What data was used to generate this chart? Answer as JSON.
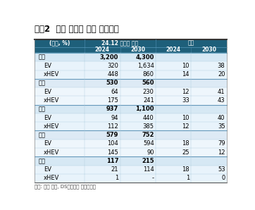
{
  "title": "그림2  기아 중장기 판매 가이던스",
  "footnote": "자료: 회사 자료, DS투자증권 리서치센터",
  "header_row1_labels": [
    "(천대, %)",
    "24.12 밸류업 공시",
    "비중"
  ],
  "header_row2_labels": [
    "",
    "2024",
    "2030",
    "2024",
    "2030"
  ],
  "rows": [
    {
      "label": "전체",
      "bold": true,
      "vals": [
        "3,200",
        "4,300",
        "",
        ""
      ]
    },
    {
      "label": "EV",
      "bold": false,
      "vals": [
        "320",
        "1,634",
        "10",
        "38"
      ]
    },
    {
      "label": "xHEV",
      "bold": false,
      "vals": [
        "448",
        "860",
        "14",
        "20"
      ]
    },
    {
      "label": "한국",
      "bold": true,
      "vals": [
        "530",
        "560",
        "",
        ""
      ]
    },
    {
      "label": "EV",
      "bold": false,
      "vals": [
        "64",
        "230",
        "12",
        "41"
      ]
    },
    {
      "label": "xHEV",
      "bold": false,
      "vals": [
        "175",
        "241",
        "33",
        "43"
      ]
    },
    {
      "label": "북미",
      "bold": true,
      "vals": [
        "937",
        "1,100",
        "",
        ""
      ]
    },
    {
      "label": "EV",
      "bold": false,
      "vals": [
        "94",
        "440",
        "10",
        "40"
      ]
    },
    {
      "label": "xHEV",
      "bold": false,
      "vals": [
        "112",
        "385",
        "12",
        "35"
      ]
    },
    {
      "label": "유럽",
      "bold": true,
      "vals": [
        "579",
        "752",
        "",
        ""
      ]
    },
    {
      "label": "EV",
      "bold": false,
      "vals": [
        "104",
        "594",
        "18",
        "79"
      ]
    },
    {
      "label": "xHEV",
      "bold": false,
      "vals": [
        "145",
        "90",
        "25",
        "12"
      ]
    },
    {
      "label": "중국",
      "bold": true,
      "vals": [
        "117",
        "215",
        "",
        ""
      ]
    },
    {
      "label": "EV",
      "bold": false,
      "vals": [
        "21",
        "114",
        "18",
        "53"
      ]
    },
    {
      "label": "xHEV",
      "bold": false,
      "vals": [
        "1",
        "-",
        "1",
        "0"
      ]
    }
  ],
  "header_bg": "#1e5f7a",
  "header_text": "#ffffff",
  "group_bg_a": "#d6e8f4",
  "group_bg_b": "#ddeaf5",
  "sub_bg_a": "#e8f3fb",
  "sub_bg_b": "#eef6fc",
  "sep_line_color": "#7aaec8",
  "border_light": "#b0cfe0",
  "title_color": "#000000",
  "note_color": "#444444",
  "col_ratios": [
    0.26,
    0.185,
    0.185,
    0.185,
    0.185
  ]
}
